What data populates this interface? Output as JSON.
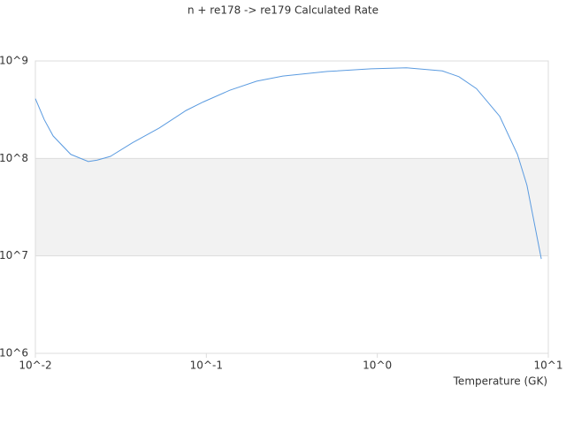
{
  "chart_data": {
    "type": "line",
    "title": "n + re178 -> re179 Calculated Rate",
    "x_label": "Temperature (GK)",
    "x": [
      0.01,
      0.01127,
      0.0127,
      0.0161,
      0.0204,
      0.023,
      0.0275,
      0.037,
      0.053,
      0.076,
      0.096,
      0.137,
      0.197,
      0.28,
      0.51,
      0.92,
      1.48,
      2.4,
      3.0,
      3.8,
      5.2,
      6.6,
      7.5,
      9.1
    ],
    "series": [
      {
        "name": "n + re178 -> re179",
        "color": "#5b9be0",
        "values": [
          410000000,
          250000000,
          170000000,
          110000000,
          93000000,
          96000000,
          105000000,
          145000000,
          205000000,
          310000000,
          380000000,
          500000000,
          620000000,
          700000000,
          780000000,
          830000000,
          850000000,
          790000000,
          690000000,
          520000000,
          270000000,
          110000000,
          53000000,
          9300000
        ]
      }
    ],
    "xscale": "log",
    "yscale": "log",
    "xlim": [
      0.01,
      10
    ],
    "ylim": [
      1000000,
      1000000000
    ],
    "xticks": [
      {
        "value": 0.01,
        "label": "10^-2"
      },
      {
        "value": 0.1,
        "label": "10^-1"
      },
      {
        "value": 1,
        "label": "10^0"
      },
      {
        "value": 10,
        "label": "10^1"
      }
    ],
    "yticks": [
      {
        "value": 1000000,
        "label": "10^6"
      },
      {
        "value": 10000000,
        "label": "10^7"
      },
      {
        "value": 100000000,
        "label": "10^8"
      },
      {
        "value": 1000000000,
        "label": "10^9"
      }
    ],
    "grid": true,
    "alternate_bands": true,
    "band_color": "#f2f2f2"
  }
}
